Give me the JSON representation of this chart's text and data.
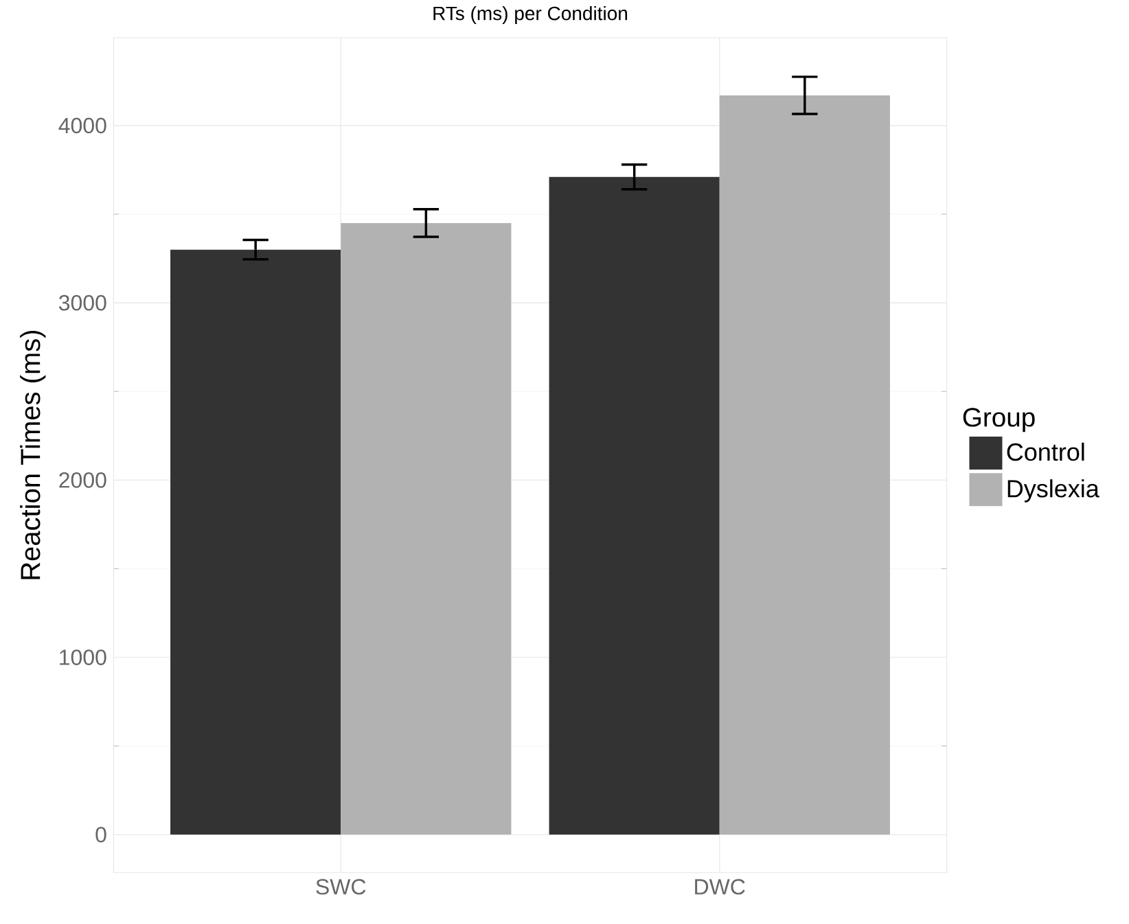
{
  "chart_data": {
    "type": "bar",
    "title": "RTs (ms) per Condition",
    "ylabel": "Reaction Times (ms)",
    "legend_title": "Group",
    "categories": [
      "SWC",
      "DWC"
    ],
    "series": [
      {
        "name": "Control",
        "color": "#333333",
        "values": [
          3300,
          3710
        ],
        "errors": [
          55,
          70
        ]
      },
      {
        "name": "Dyslexia",
        "color": "#b2b2b2",
        "values": [
          3450,
          4170
        ],
        "errors": [
          78,
          105
        ]
      }
    ],
    "ylim": [
      -214,
      4495
    ],
    "yticks": [
      0,
      1000,
      2000,
      3000,
      4000
    ],
    "grid": true,
    "legend": "right"
  }
}
